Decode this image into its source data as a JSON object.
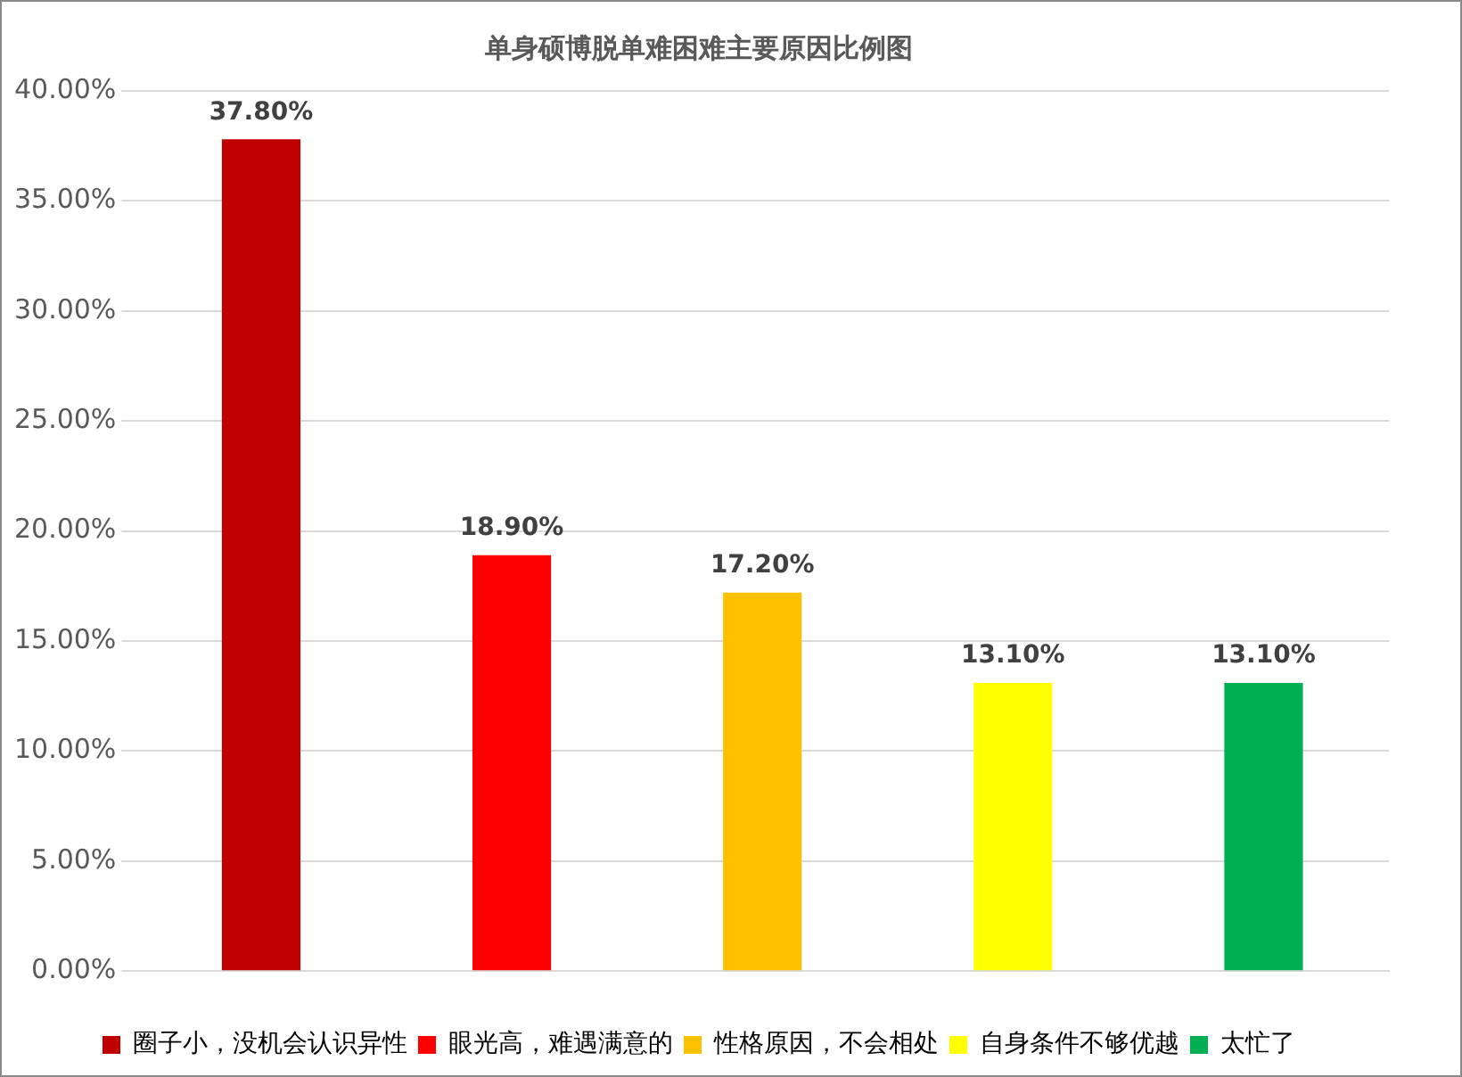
{
  "chart_data": {
    "type": "bar",
    "title": "单身硕博脱单难困难主要原因比例图",
    "categories": [
      null,
      null,
      null,
      null,
      null
    ],
    "series": [
      {
        "name": "圈子小，没机会认识异性",
        "color": "#c00000",
        "values": [
          37.8,
          null,
          null,
          null,
          null
        ],
        "value_labels": [
          "37.80%",
          null,
          null,
          null,
          null
        ]
      },
      {
        "name": "眼光高，难遇满意的",
        "color": "#ff0000",
        "values": [
          null,
          18.9,
          null,
          null,
          null
        ],
        "value_labels": [
          null,
          "18.90%",
          null,
          null,
          null
        ]
      },
      {
        "name": "性格原因，不会相处",
        "color": "#ffc000",
        "values": [
          null,
          null,
          17.2,
          null,
          null
        ],
        "value_labels": [
          null,
          null,
          "17.20%",
          null,
          null
        ]
      },
      {
        "name": "自身条件不够优越",
        "color": "#ffff00",
        "values": [
          null,
          null,
          null,
          13.1,
          null
        ],
        "value_labels": [
          null,
          null,
          null,
          "13.10%",
          null
        ]
      },
      {
        "name": "太忙了",
        "color": "#00b050",
        "values": [
          null,
          null,
          null,
          null,
          13.1
        ],
        "value_labels": [
          null,
          null,
          null,
          null,
          "13.10%"
        ]
      }
    ],
    "ylim": [
      0,
      40
    ],
    "yticks": [
      {
        "value": 0,
        "label": "0.00%"
      },
      {
        "value": 5,
        "label": "5.00%"
      },
      {
        "value": 10,
        "label": "10.00%"
      },
      {
        "value": 15,
        "label": "15.00%"
      },
      {
        "value": 20,
        "label": "20.00%"
      },
      {
        "value": 25,
        "label": "25.00%"
      },
      {
        "value": 30,
        "label": "30.00%"
      },
      {
        "value": 35,
        "label": "35.00%"
      },
      {
        "value": 40,
        "label": "40.00%"
      }
    ],
    "grid": "y",
    "legend": "bottom"
  }
}
